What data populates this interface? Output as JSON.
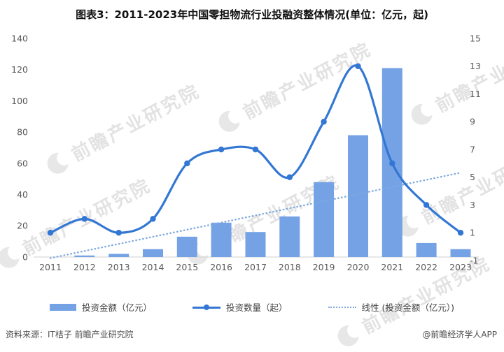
{
  "title": "图表3：2011-2023年中国零担物流行业投融资整体情况(单位：亿元，起)",
  "watermark": {
    "text": "前瞻产业研究院"
  },
  "chart_data": {
    "type": "bar+line combo",
    "title": "图表3：2011-2023年中国零担物流行业投融资整体情况(单位：亿元，起)",
    "categories": [
      "2011",
      "2012",
      "2013",
      "2014",
      "2015",
      "2016",
      "2017",
      "2018",
      "2019",
      "2020",
      "2021",
      "2022",
      "2023"
    ],
    "series": [
      {
        "name": "投资金额（亿元）",
        "type": "bar",
        "axis": "left",
        "values": [
          0,
          1,
          2,
          5,
          13,
          22,
          16,
          26,
          48,
          78,
          121,
          9,
          5
        ],
        "color": "#74a2e5"
      },
      {
        "name": "投资数量（起）",
        "type": "line",
        "axis": "right",
        "values": [
          1,
          2,
          1,
          2,
          6,
          7,
          7,
          5,
          9,
          13,
          6,
          3,
          1
        ],
        "color": "#3377d4"
      },
      {
        "name": "线性 (投资金额（亿元）)",
        "type": "linear-trend",
        "axis": "left",
        "start": -0.7,
        "end": 54,
        "color": "#7fa9de"
      }
    ],
    "left_axis": {
      "label": "投资金额（亿元）",
      "min": 0,
      "max": 140,
      "ticks": [
        0,
        20,
        40,
        60,
        80,
        100,
        120,
        140
      ]
    },
    "right_axis": {
      "label": "投资数量（起）",
      "min": -1,
      "max": 15,
      "ticks": [
        -1,
        1,
        3,
        5,
        7,
        9,
        11,
        13,
        15
      ]
    },
    "grid": false,
    "legend_position": "bottom"
  },
  "footer": {
    "source": "资料来源：IT桔子 前瞻产业研究院",
    "credit": "@前瞻经济学人APP"
  }
}
